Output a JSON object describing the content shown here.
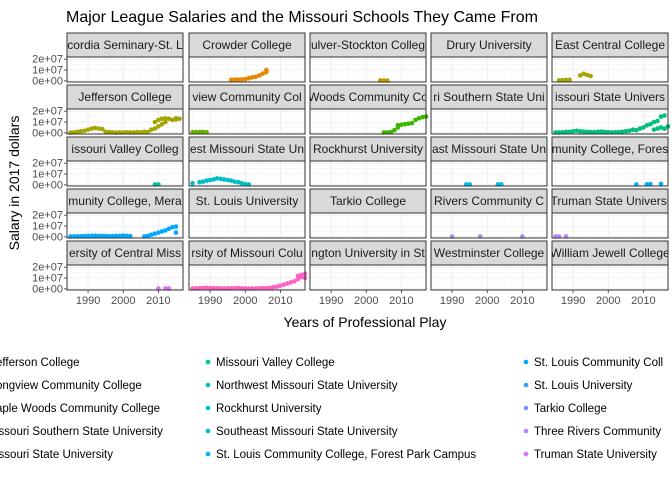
{
  "chart_data": {
    "type": "scatter",
    "title": "Major League Salaries and the Missouri Schools They Came From",
    "xlabel": "Years of Professional Play",
    "ylabel": "Salary in 2017 dollars",
    "xlim": [
      1984,
      2017
    ],
    "ylim": [
      -1000000,
      22000000
    ],
    "x_ticks": [
      1990,
      2000,
      2010
    ],
    "y_ticks": [
      0,
      10000000,
      20000000
    ],
    "y_tick_labels": [
      "0e+00",
      "1e+07",
      "2e+07"
    ],
    "grid": true,
    "layout": "facet-wrap, 5 columns",
    "legend_position": "bottom",
    "panels": [
      {
        "label": "cordia Seminary-St. L",
        "color": "#F8766D",
        "points": []
      },
      {
        "label": "Crowder College",
        "color": "#E58700",
        "points": [
          [
            1996,
            1000000
          ],
          [
            1997,
            1200000
          ],
          [
            1998,
            1300000
          ],
          [
            1999,
            1400000
          ],
          [
            2000,
            1600000
          ],
          [
            2001,
            2500000
          ],
          [
            2002,
            3200000
          ],
          [
            2003,
            3800000
          ],
          [
            2004,
            5000000
          ],
          [
            2005,
            6800000
          ],
          [
            2006,
            8000000
          ],
          [
            2006,
            10000000
          ]
        ]
      },
      {
        "label": "ulver-Stockton Colleg",
        "color": "#C99800",
        "points": [
          [
            2004,
            400000
          ],
          [
            2005,
            500000
          ],
          [
            2006,
            350000
          ]
        ]
      },
      {
        "label": "Drury University",
        "color": "#A3A500",
        "points": []
      },
      {
        "label": "East Central College",
        "color": "#A3A500",
        "points": [
          [
            1986,
            500000
          ],
          [
            1987,
            700000
          ],
          [
            1988,
            900000
          ],
          [
            1989,
            1000000
          ],
          [
            1992,
            5000000
          ],
          [
            1993,
            6500000
          ],
          [
            1994,
            5500000
          ],
          [
            1995,
            4500000
          ]
        ]
      },
      {
        "label": "Jefferson College",
        "color": "#A3A500",
        "points": [
          [
            1985,
            300000
          ],
          [
            1986,
            500000
          ],
          [
            1987,
            1000000
          ],
          [
            1988,
            1500000
          ],
          [
            1989,
            2000000
          ],
          [
            1990,
            3000000
          ],
          [
            1991,
            4000000
          ],
          [
            1992,
            4500000
          ],
          [
            1993,
            4000000
          ],
          [
            1994,
            3500000
          ],
          [
            1995,
            1000000
          ],
          [
            1996,
            800000
          ],
          [
            1997,
            500000
          ],
          [
            1998,
            300000
          ],
          [
            1999,
            400000
          ],
          [
            2000,
            500000
          ],
          [
            2001,
            600000
          ],
          [
            2002,
            400000
          ],
          [
            2003,
            500000
          ],
          [
            2004,
            700000
          ],
          [
            2005,
            600000
          ],
          [
            2006,
            1000000
          ],
          [
            2007,
            800000
          ],
          [
            2008,
            3000000
          ],
          [
            2009,
            4000000
          ],
          [
            2009,
            10000000
          ],
          [
            2010,
            6000000
          ],
          [
            2010,
            12000000
          ],
          [
            2011,
            8000000
          ],
          [
            2011,
            13000000
          ],
          [
            2012,
            10000000
          ],
          [
            2012,
            13500000
          ],
          [
            2013,
            13000000
          ],
          [
            2014,
            12000000
          ],
          [
            2015,
            13500000
          ],
          [
            2015,
            12500000
          ],
          [
            2016,
            13000000
          ]
        ]
      },
      {
        "label": "view Community Col",
        "color": "#6BB100",
        "points": [
          [
            1985,
            700000
          ],
          [
            1986,
            800000
          ],
          [
            1987,
            900000
          ],
          [
            1988,
            1000000
          ],
          [
            1989,
            700000
          ]
        ]
      },
      {
        "label": "Woods Community Co",
        "color": "#39B600",
        "points": [
          [
            2005,
            400000
          ],
          [
            2006,
            500000
          ],
          [
            2007,
            700000
          ],
          [
            2008,
            2500000
          ],
          [
            2009,
            5000000
          ],
          [
            2009,
            7000000
          ],
          [
            2010,
            7500000
          ],
          [
            2011,
            8000000
          ],
          [
            2012,
            8500000
          ],
          [
            2013,
            9000000
          ],
          [
            2014,
            12000000
          ],
          [
            2015,
            13500000
          ],
          [
            2016,
            14500000
          ],
          [
            2017,
            15000000
          ]
        ]
      },
      {
        "label": "ri Southern State Uni",
        "color": "#00BB4E",
        "points": []
      },
      {
        "label": "issouri State Univers",
        "color": "#00BF7D",
        "points": [
          [
            1985,
            500000
          ],
          [
            1986,
            400000
          ],
          [
            1987,
            700000
          ],
          [
            1988,
            1000000
          ],
          [
            1989,
            1000000
          ],
          [
            1990,
            1500000
          ],
          [
            1991,
            2000000
          ],
          [
            1992,
            1500000
          ],
          [
            1993,
            1200000
          ],
          [
            1994,
            1000000
          ],
          [
            1995,
            800000
          ],
          [
            1996,
            700000
          ],
          [
            1997,
            1000000
          ],
          [
            1998,
            1200000
          ],
          [
            1999,
            900000
          ],
          [
            2000,
            700000
          ],
          [
            2001,
            500000
          ],
          [
            2002,
            600000
          ],
          [
            2003,
            800000
          ],
          [
            2004,
            1000000
          ],
          [
            2005,
            1500000
          ],
          [
            2006,
            2000000
          ],
          [
            2007,
            3000000
          ],
          [
            2008,
            2500000
          ],
          [
            2009,
            4000000
          ],
          [
            2010,
            5000000
          ],
          [
            2011,
            7000000
          ],
          [
            2012,
            8000000
          ],
          [
            2013,
            10000000
          ],
          [
            2013,
            3000000
          ],
          [
            2014,
            11000000
          ],
          [
            2014,
            4000000
          ],
          [
            2015,
            15000000
          ],
          [
            2015,
            5000000
          ],
          [
            2016,
            16000000
          ],
          [
            2016,
            4000000
          ],
          [
            2017,
            6000000
          ]
        ]
      },
      {
        "label": "issouri Valley Colleg",
        "color": "#00C19F",
        "points": [
          [
            2009,
            400000
          ],
          [
            2010,
            500000
          ]
        ]
      },
      {
        "label": "est Missouri State Un",
        "color": "#00BFC4",
        "points": [
          [
            1985,
            1500000
          ],
          [
            1987,
            2500000
          ],
          [
            1988,
            3000000
          ],
          [
            1989,
            4000000
          ],
          [
            1990,
            4500000
          ],
          [
            1991,
            5000000
          ],
          [
            1992,
            6000000
          ],
          [
            1993,
            5500000
          ],
          [
            1994,
            5000000
          ],
          [
            1995,
            4500000
          ],
          [
            1996,
            4000000
          ],
          [
            1997,
            3000000
          ],
          [
            1998,
            2500000
          ],
          [
            1999,
            1500000
          ],
          [
            2000,
            800000
          ],
          [
            2001,
            500000
          ]
        ]
      },
      {
        "label": "Rockhurst University",
        "color": "#00B8E7",
        "points": []
      },
      {
        "label": "ast Missouri State Un",
        "color": "#00B8E7",
        "points": [
          [
            1994,
            400000
          ],
          [
            1995,
            500000
          ],
          [
            2003,
            400000
          ],
          [
            2004,
            600000
          ]
        ]
      },
      {
        "label": "munity College, Fores",
        "color": "#00B0F6",
        "points": [
          [
            2008,
            500000
          ],
          [
            2011,
            600000
          ],
          [
            2012,
            800000
          ],
          [
            2015,
            1000000
          ]
        ]
      },
      {
        "label": "munity College, Mera",
        "color": "#00A9FF",
        "points": [
          [
            1985,
            400000
          ],
          [
            1986,
            500000
          ],
          [
            1987,
            600000
          ],
          [
            1988,
            700000
          ],
          [
            1989,
            800000
          ],
          [
            1990,
            900000
          ],
          [
            1991,
            1000000
          ],
          [
            1992,
            1100000
          ],
          [
            1993,
            1000000
          ],
          [
            1994,
            900000
          ],
          [
            1995,
            800000
          ],
          [
            1996,
            700000
          ],
          [
            1997,
            800000
          ],
          [
            1998,
            900000
          ],
          [
            1999,
            1000000
          ],
          [
            2000,
            1200000
          ],
          [
            2001,
            1000000
          ],
          [
            2002,
            800000
          ],
          [
            2006,
            500000
          ],
          [
            2007,
            1000000
          ],
          [
            2008,
            2000000
          ],
          [
            2009,
            3000000
          ],
          [
            2010,
            4000000
          ],
          [
            2011,
            5000000
          ],
          [
            2012,
            6000000
          ],
          [
            2013,
            7500000
          ],
          [
            2014,
            9000000
          ],
          [
            2015,
            4000000
          ],
          [
            2015,
            9500000
          ]
        ]
      },
      {
        "label": "St. Louis University",
        "color": "#00A9FF",
        "points": []
      },
      {
        "label": "Tarkio College",
        "color": "#619CFF",
        "points": []
      },
      {
        "label": "Rivers Community C",
        "color": "#9590FF",
        "points": [
          [
            1990,
            400000
          ],
          [
            1998,
            500000
          ],
          [
            2010,
            400000
          ]
        ]
      },
      {
        "label": "Truman State Universi",
        "color": "#B983FF",
        "points": [
          [
            1985,
            400000
          ],
          [
            1986,
            500000
          ],
          [
            1988,
            500000
          ]
        ]
      },
      {
        "label": "ersity of Central Miss",
        "color": "#DB72FB",
        "points": [
          [
            2010,
            400000
          ],
          [
            2012,
            500000
          ],
          [
            2013,
            400000
          ]
        ]
      },
      {
        "label": "rsity of Missouri Colu",
        "color": "#FF61C3",
        "points": [
          [
            1985,
            400000
          ],
          [
            1986,
            500000
          ],
          [
            1987,
            700000
          ],
          [
            1988,
            900000
          ],
          [
            1989,
            1000000
          ],
          [
            1990,
            800000
          ],
          [
            1991,
            700000
          ],
          [
            1992,
            600000
          ],
          [
            1993,
            500000
          ],
          [
            1994,
            400000
          ],
          [
            1995,
            500000
          ],
          [
            1996,
            600000
          ],
          [
            1997,
            700000
          ],
          [
            1998,
            800000
          ],
          [
            1999,
            600000
          ],
          [
            2000,
            500000
          ],
          [
            2001,
            400000
          ],
          [
            2002,
            400000
          ],
          [
            2003,
            500000
          ],
          [
            2004,
            600000
          ],
          [
            2005,
            700000
          ],
          [
            2006,
            800000
          ],
          [
            2007,
            1000000
          ],
          [
            2008,
            1500000
          ],
          [
            2009,
            2000000
          ],
          [
            2010,
            3000000
          ],
          [
            2011,
            4000000
          ],
          [
            2012,
            5000000
          ],
          [
            2013,
            6000000
          ],
          [
            2014,
            7000000
          ],
          [
            2015,
            9000000
          ],
          [
            2015,
            12000000
          ],
          [
            2016,
            13000000
          ],
          [
            2016,
            11000000
          ],
          [
            2017,
            14000000
          ],
          [
            2017,
            10000000
          ]
        ]
      },
      {
        "label": "ngton University in St",
        "color": "#FF61C3",
        "points": []
      },
      {
        "label": "Westminster College",
        "color": "#FF61C3",
        "points": []
      },
      {
        "label": "William Jewell College",
        "color": "#FF61C3",
        "points": []
      }
    ],
    "legend": [
      [
        {
          "name": "Jefferson College",
          "display": "efferson College",
          "color": "#A3A500"
        },
        {
          "name": "Longview Community College",
          "display": "ongview Community College",
          "color": "#6BB100"
        },
        {
          "name": "Maple Woods Community College",
          "display": "aple Woods Community College",
          "color": "#39B600"
        },
        {
          "name": "Missouri Southern State University",
          "display": "issouri Southern State University",
          "color": "#00BB4E"
        },
        {
          "name": "Missouri State University",
          "display": "issouri State University",
          "color": "#00BF7D"
        }
      ],
      [
        {
          "name": "Missouri Valley College",
          "display": "Missouri Valley College",
          "color": "#00C19F"
        },
        {
          "name": "Northwest Missouri State University",
          "display": "Northwest Missouri State University",
          "color": "#00BFC4"
        },
        {
          "name": "Rockhurst University",
          "display": "Rockhurst University",
          "color": "#00BCD8"
        },
        {
          "name": "Southeast Missouri State University",
          "display": "Southeast Missouri State University",
          "color": "#00B8E7"
        },
        {
          "name": "St. Louis Community College, Forest Park Campus",
          "display": "St. Louis Community College, Forest Park Campus",
          "color": "#00B0F6"
        }
      ],
      [
        {
          "name": "St. Louis Community College",
          "display": "St. Louis Community Coll",
          "color": "#00A9FF"
        },
        {
          "name": "St. Louis University",
          "display": "St. Louis University",
          "color": "#35A2FF"
        },
        {
          "name": "Tarkio College",
          "display": "Tarkio College",
          "color": "#7799FF"
        },
        {
          "name": "Three Rivers Community",
          "display": "Three Rivers Community",
          "color": "#B983FF"
        },
        {
          "name": "Truman State University",
          "display": "Truman State University",
          "color": "#DB72FB"
        }
      ]
    ]
  }
}
